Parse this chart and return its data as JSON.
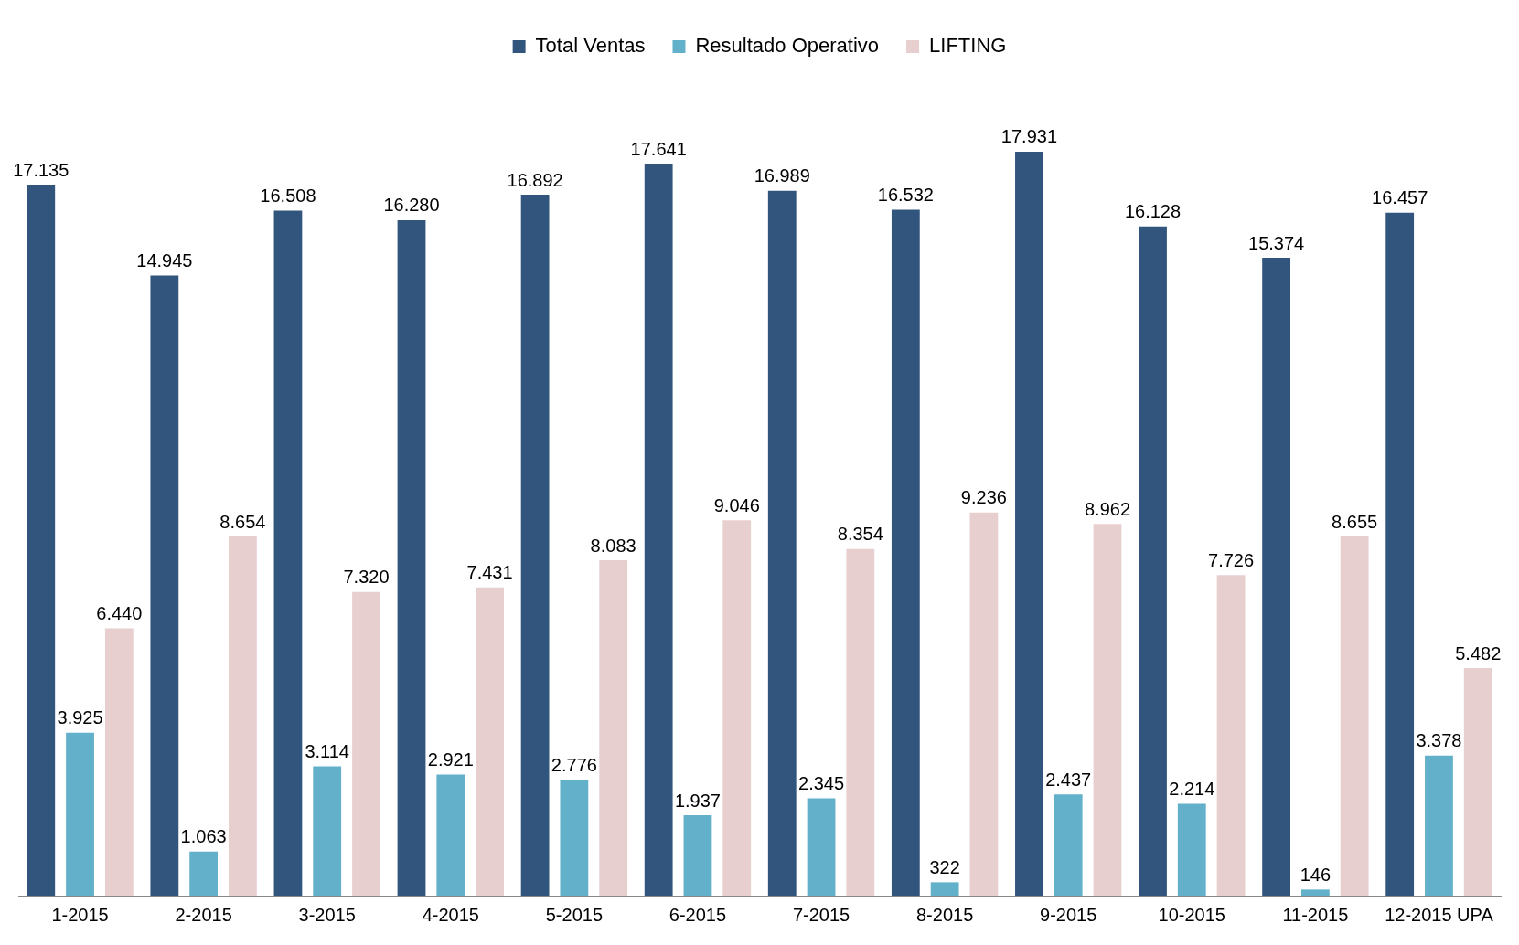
{
  "chart_data": {
    "type": "bar",
    "categories": [
      "1-2015",
      "2-2015",
      "3-2015",
      "4-2015",
      "5-2015",
      "6-2015",
      "7-2015",
      "8-2015",
      "9-2015",
      "10-2015",
      "11-2015",
      "12-2015 UPA"
    ],
    "series": [
      {
        "name": "Total Ventas",
        "color": "#31557d",
        "values": [
          17135,
          14945,
          16508,
          16280,
          16892,
          17641,
          16989,
          16532,
          17931,
          16128,
          15374,
          16457
        ],
        "value_labels": [
          "17.135",
          "14.945",
          "16.508",
          "16.280",
          "16.892",
          "17.641",
          "16.989",
          "16.532",
          "17.931",
          "16.128",
          "15.374",
          "16.457"
        ]
      },
      {
        "name": "Resultado Operativo",
        "color": "#62b0c9",
        "values": [
          3925,
          1063,
          3114,
          2921,
          2776,
          1937,
          2345,
          322,
          2437,
          2214,
          146,
          3378
        ],
        "value_labels": [
          "3.925",
          "1.063",
          "3.114",
          "2.921",
          "2.776",
          "1.937",
          "2.345",
          "322",
          "2.437",
          "2.214",
          "146",
          "3.378"
        ]
      },
      {
        "name": "LIFTING",
        "color": "#e8cfcf",
        "values": [
          6440,
          8654,
          7320,
          7431,
          8083,
          9046,
          8354,
          9236,
          8962,
          7726,
          8655,
          5482
        ],
        "value_labels": [
          "6.440",
          "8.654",
          "7.320",
          "7.431",
          "8.083",
          "9.046",
          "8.354",
          "9.236",
          "8.962",
          "7.726",
          "8.655",
          "5.482"
        ]
      }
    ],
    "legend": "top",
    "grid": false,
    "tick_labels": "x"
  }
}
